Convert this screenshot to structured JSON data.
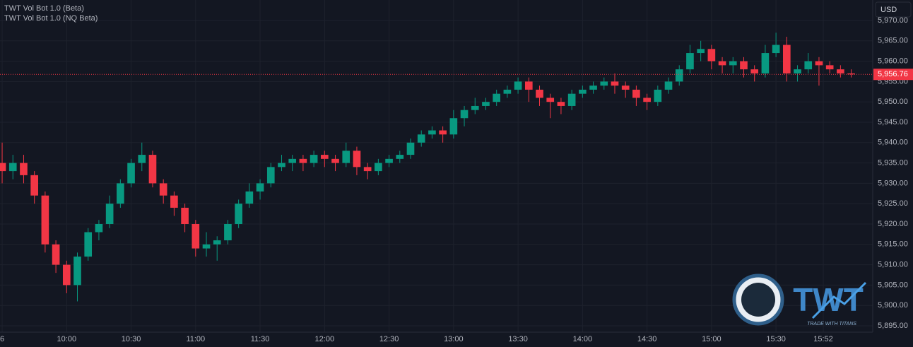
{
  "chart_data": {
    "type": "candlestick",
    "indicators": [
      "TWT Vol Bot 1.0 (Beta)",
      "TWT Vol Bot 1.0 (NQ Beta)"
    ],
    "currency": "USD",
    "up_color": "#089981",
    "down_color": "#f23645",
    "last_price_color": "#f23645",
    "x": [
      570,
      575,
      580,
      585,
      590,
      595,
      600,
      605,
      610,
      615,
      620,
      625,
      630,
      635,
      640,
      645,
      650,
      655,
      660,
      665,
      670,
      675,
      680,
      685,
      690,
      695,
      700,
      705,
      710,
      715,
      720,
      725,
      730,
      735,
      740,
      745,
      750,
      755,
      760,
      765,
      770,
      775,
      780,
      785,
      790,
      795,
      800,
      805,
      810,
      815,
      820,
      825,
      830,
      835,
      840,
      845,
      850,
      855,
      860,
      865,
      870,
      875,
      880,
      885,
      890,
      895,
      900,
      905,
      910,
      915,
      920,
      925,
      930,
      935,
      940,
      945,
      950,
      955,
      960,
      965
    ],
    "open": [
      5935,
      5933,
      5935,
      5932,
      5927,
      5915,
      5910,
      5905,
      5912,
      5918,
      5920,
      5925,
      5930,
      5935,
      5937,
      5930,
      5927,
      5924,
      5920,
      5914,
      5915,
      5916,
      5920,
      5925,
      5928,
      5930,
      5934,
      5935,
      5936,
      5935,
      5937,
      5936,
      5935,
      5938,
      5934,
      5933,
      5935,
      5936,
      5937,
      5940,
      5942,
      5943,
      5942,
      5946,
      5948,
      5949,
      5950,
      5952,
      5953,
      5955,
      5953,
      5951,
      5950,
      5949,
      5952,
      5953,
      5954,
      5955,
      5954,
      5953,
      5951,
      5950,
      5953,
      5955,
      5958,
      5962,
      5963,
      5960,
      5959,
      5960,
      5958,
      5957,
      5962,
      5964,
      5957,
      5958,
      5960,
      5959,
      5958,
      5957
    ],
    "high": [
      5940,
      5937,
      5937,
      5933,
      5928,
      5916,
      5911,
      5913,
      5919,
      5921,
      5927,
      5931,
      5936,
      5940,
      5938,
      5931,
      5928,
      5925,
      5921,
      5918,
      5917,
      5921,
      5926,
      5930,
      5931,
      5935,
      5937,
      5937,
      5937,
      5938,
      5938,
      5937,
      5940,
      5939,
      5935,
      5936,
      5937,
      5938,
      5941,
      5943,
      5944,
      5944,
      5948,
      5949,
      5951,
      5951,
      5953,
      5954,
      5956,
      5956,
      5954,
      5952,
      5951,
      5953,
      5954,
      5955,
      5956,
      5957,
      5955,
      5954,
      5952,
      5954,
      5956,
      5959,
      5964,
      5965,
      5964,
      5961,
      5961,
      5961,
      5959,
      5964,
      5967,
      5966,
      5959,
      5962,
      5961,
      5960,
      5959,
      5958
    ],
    "low": [
      5930,
      5931,
      5930,
      5925,
      5913,
      5908,
      5903,
      5901,
      5911,
      5916,
      5919,
      5924,
      5929,
      5933,
      5929,
      5925,
      5922,
      5918,
      5912,
      5912,
      5911,
      5915,
      5919,
      5924,
      5926,
      5929,
      5933,
      5933,
      5933,
      5934,
      5934,
      5933,
      5934,
      5932,
      5931,
      5932,
      5934,
      5935,
      5936,
      5939,
      5941,
      5940,
      5941,
      5944,
      5947,
      5948,
      5949,
      5951,
      5952,
      5950,
      5949,
      5946,
      5947,
      5948,
      5951,
      5952,
      5953,
      5952,
      5951,
      5949,
      5948,
      5949,
      5952,
      5954,
      5957,
      5960,
      5958,
      5957,
      5957,
      5956,
      5955,
      5956,
      5961,
      5955,
      5955,
      5957,
      5954,
      5957,
      5956,
      5956
    ],
    "close": [
      5933,
      5935,
      5932,
      5927,
      5915,
      5910,
      5905,
      5912,
      5918,
      5920,
      5925,
      5930,
      5935,
      5937,
      5930,
      5927,
      5924,
      5920,
      5914,
      5915,
      5916,
      5920,
      5925,
      5928,
      5930,
      5934,
      5935,
      5936,
      5935,
      5937,
      5936,
      5935,
      5938,
      5934,
      5933,
      5935,
      5936,
      5937,
      5940,
      5942,
      5943,
      5942,
      5946,
      5948,
      5949,
      5950,
      5952,
      5953,
      5955,
      5953,
      5951,
      5950,
      5949,
      5952,
      5953,
      5954,
      5955,
      5954,
      5953,
      5951,
      5950,
      5953,
      5955,
      5958,
      5962,
      5963,
      5960,
      5959,
      5960,
      5958,
      5957,
      5962,
      5964,
      5957,
      5958,
      5960,
      5959,
      5958,
      5957,
      5956.76
    ],
    "last_price": {
      "value": 5956.76,
      "label": "5,956.76"
    },
    "xlim": [
      569,
      975
    ],
    "xticks": [
      {
        "value": 570,
        "label": "6"
      },
      {
        "value": 600,
        "label": "10:00"
      },
      {
        "value": 630,
        "label": "10:30"
      },
      {
        "value": 660,
        "label": "11:00"
      },
      {
        "value": 690,
        "label": "11:30"
      },
      {
        "value": 720,
        "label": "12:00"
      },
      {
        "value": 750,
        "label": "12:30"
      },
      {
        "value": 780,
        "label": "13:00"
      },
      {
        "value": 810,
        "label": "13:30"
      },
      {
        "value": 840,
        "label": "14:00"
      },
      {
        "value": 870,
        "label": "14:30"
      },
      {
        "value": 900,
        "label": "15:00"
      },
      {
        "value": 930,
        "label": "15:30"
      },
      {
        "value": 952,
        "label": "15:52"
      }
    ],
    "ylim": [
      5893.44,
      5975.03
    ],
    "yticks": [
      {
        "value": 5895,
        "label": "5,895.00"
      },
      {
        "value": 5900,
        "label": "5,900.00"
      },
      {
        "value": 5905,
        "label": "5,905.00"
      },
      {
        "value": 5910,
        "label": "5,910.00"
      },
      {
        "value": 5915,
        "label": "5,915.00"
      },
      {
        "value": 5920,
        "label": "5,920.00"
      },
      {
        "value": 5925,
        "label": "5,925.00"
      },
      {
        "value": 5930,
        "label": "5,930.00"
      },
      {
        "value": 5935,
        "label": "5,935.00"
      },
      {
        "value": 5940,
        "label": "5,940.00"
      },
      {
        "value": 5945,
        "label": "5,945.00"
      },
      {
        "value": 5950,
        "label": "5,950.00"
      },
      {
        "value": 5955,
        "label": "5,955.00"
      },
      {
        "value": 5960,
        "label": "5,960.00"
      },
      {
        "value": 5965,
        "label": "5,965.00"
      },
      {
        "value": 5970,
        "label": "5,970.00"
      }
    ],
    "grid": true
  },
  "logo": {
    "text": "TWT",
    "tagline": "TRADE WITH TITANS"
  }
}
